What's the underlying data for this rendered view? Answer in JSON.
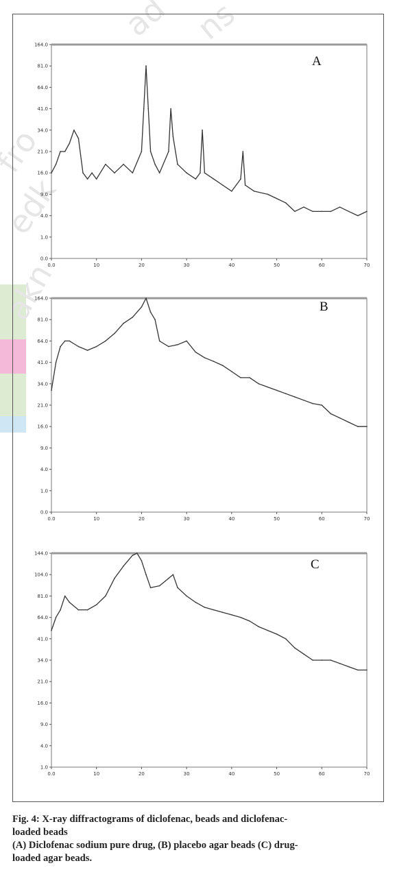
{
  "watermark": {
    "parts": [
      "ad",
      "ns",
      "fro",
      "edk",
      "akn"
    ]
  },
  "caption": {
    "line1": "Fig. 4: X-ray diffractograms of diclofenac, beads and diclofenac-",
    "line2": "loaded beads",
    "line3": "(A) Diclofenac sodium pure drug, (B) placebo agar beads (C) drug-",
    "line4": "loaded agar beads."
  },
  "colors": {
    "trace": "#333333",
    "frame": "#666666",
    "bandGreen": "#dcebd2",
    "bandPink": "#f4b8d8",
    "bandBlue": "#cfe6f5"
  },
  "chart_data": [
    {
      "type": "line",
      "label": "A",
      "xlim": [
        0,
        70
      ],
      "x_ticks": [
        "0.0",
        "10",
        "20",
        "30",
        "40",
        "50",
        "60",
        "70"
      ],
      "y_ticks": [
        "0.0",
        "1.0",
        "4.0",
        "9.0",
        "16.0",
        "21.0",
        "34.0",
        "41.0",
        "64.0",
        "81.0",
        "164.0"
      ],
      "series": [
        {
          "x": [
            0,
            1,
            2,
            3,
            4,
            5,
            6,
            7,
            8,
            9,
            10,
            12,
            14,
            16,
            18,
            20,
            20.5,
            21,
            21.5,
            22,
            23,
            24,
            26,
            26.5,
            27,
            28,
            30,
            32,
            33,
            33.5,
            34,
            36,
            38,
            40,
            42,
            42.5,
            43,
            45,
            48,
            50,
            52,
            54,
            56,
            58,
            60,
            62,
            64,
            66,
            68,
            70
          ],
          "y": [
            16,
            18,
            21,
            21,
            26,
            34,
            29,
            16,
            14,
            16,
            14,
            18,
            16,
            18,
            16,
            21,
            41,
            81,
            41,
            21,
            18,
            16,
            21,
            41,
            30,
            18,
            16,
            14,
            16,
            34,
            16,
            14,
            12,
            10,
            14,
            21,
            12,
            10,
            9,
            8,
            7,
            5,
            6,
            5,
            5,
            5,
            6,
            5,
            4,
            5
          ]
        }
      ]
    },
    {
      "type": "line",
      "label": "B",
      "xlim": [
        0,
        70
      ],
      "x_ticks": [
        "0.0",
        "10",
        "20",
        "30",
        "40",
        "50",
        "60",
        "70"
      ],
      "y_ticks": [
        "0.0",
        "1.0",
        "4.0",
        "9.0",
        "16.0",
        "21.0",
        "34.0",
        "41.0",
        "64.0",
        "81.0",
        "164.0"
      ],
      "series": [
        {
          "x": [
            0,
            1,
            2,
            3,
            4,
            6,
            8,
            10,
            12,
            14,
            16,
            18,
            20,
            21,
            22,
            23,
            24,
            26,
            28,
            30,
            32,
            34,
            36,
            38,
            40,
            42,
            44,
            46,
            48,
            50,
            52,
            54,
            56,
            58,
            60,
            62,
            64,
            66,
            68,
            70
          ],
          "y": [
            30,
            41,
            58,
            64,
            64,
            58,
            54,
            58,
            64,
            70,
            78,
            90,
            130,
            164,
            110,
            81,
            64,
            58,
            60,
            64,
            52,
            46,
            42,
            40,
            38,
            36,
            36,
            34,
            32,
            30,
            28,
            26,
            24,
            22,
            21,
            19,
            18,
            17,
            16,
            16
          ]
        }
      ]
    },
    {
      "type": "line",
      "label": "C",
      "xlim": [
        0,
        70
      ],
      "x_ticks": [
        "0.0",
        "10",
        "20",
        "30",
        "40",
        "50",
        "60",
        "70"
      ],
      "y_ticks": [
        "1.0",
        "4.0",
        "9.0",
        "16.0",
        "21.0",
        "34.0",
        "41.0",
        "64.0",
        "81.0",
        "104.0",
        "144.0"
      ],
      "series": [
        {
          "x": [
            0,
            1,
            2,
            3,
            4,
            6,
            8,
            10,
            12,
            14,
            16,
            18,
            19,
            20,
            21,
            22,
            24,
            26,
            27,
            28,
            30,
            32,
            34,
            36,
            38,
            40,
            42,
            44,
            46,
            48,
            50,
            52,
            54,
            56,
            58,
            60,
            62,
            64,
            66,
            68,
            70
          ],
          "y": [
            50,
            64,
            70,
            81,
            76,
            70,
            70,
            74,
            81,
            100,
            120,
            140,
            144,
            130,
            104,
            90,
            92,
            100,
            104,
            90,
            81,
            76,
            72,
            70,
            68,
            66,
            64,
            60,
            54,
            50,
            46,
            41,
            38,
            36,
            34,
            34,
            34,
            32,
            30,
            28,
            28
          ]
        }
      ]
    }
  ]
}
